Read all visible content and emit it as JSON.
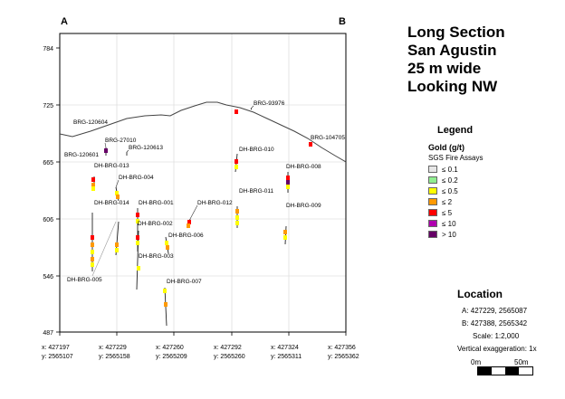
{
  "section": {
    "corner_a": "A",
    "corner_b": "B",
    "y_ticks": [
      "784",
      "725",
      "665",
      "606",
      "546",
      "487"
    ],
    "x_ticks": [
      {
        "x": "x: 427197",
        "y": "y: 2565107"
      },
      {
        "x": "x: 427229",
        "y": "y: 2565158"
      },
      {
        "x": "x: 427260",
        "y": "y: 2565209"
      },
      {
        "x": "x: 427292",
        "y": "y: 2565260"
      },
      {
        "x": "x: 427324",
        "y": "y: 2565311"
      },
      {
        "x": "x: 427356",
        "y": "y: 2565362"
      }
    ],
    "hole_labels": [
      "BRG-120604",
      "BRG-93976",
      "BRG-27010",
      "BRG-120613",
      "BRG-120601",
      "DH-BRG-013",
      "DH-BRG-010",
      "BRG-104705",
      "DH-BRG-008",
      "DH-BRG-004",
      "DH-BRG-011",
      "DH-BRG-014",
      "DH-BRG-001",
      "DH-BRG-012",
      "DH-BRG-009",
      "DH-BRG-002",
      "DH-BRG-006",
      "DH-BRG-003",
      "DH-BRG-005",
      "DH-BRG-007"
    ],
    "line_color": "#222222",
    "grid_color": "#d6d6d6"
  },
  "title": {
    "lines": [
      "Long Section",
      "San Agustin",
      "25 m wide",
      "Looking NW"
    ]
  },
  "legend": {
    "title": "Legend",
    "subtitle": "Gold (g/t)",
    "assay_label": "SGS Fire Assays",
    "items": [
      {
        "label": "≤ 0.1",
        "color": "#e6e6e6"
      },
      {
        "label": "≤ 0.2",
        "color": "#90ee90"
      },
      {
        "label": "≤ 0.5",
        "color": "#ffff00"
      },
      {
        "label": "≤ 2",
        "color": "#ff9900"
      },
      {
        "label": "≤ 5",
        "color": "#ff0000"
      },
      {
        "label": "≤ 10",
        "color": "#b000b0"
      },
      {
        "label": "> 10",
        "color": "#660066"
      }
    ]
  },
  "location": {
    "title": "Location",
    "point_a": "A:   427229, 2565087",
    "point_b": "B:   427388, 2565342",
    "scale": "Scale: 1:2,000",
    "exaggeration": "Vertical exaggeration: 1x",
    "bar_start": "0m",
    "bar_end": "50m"
  }
}
